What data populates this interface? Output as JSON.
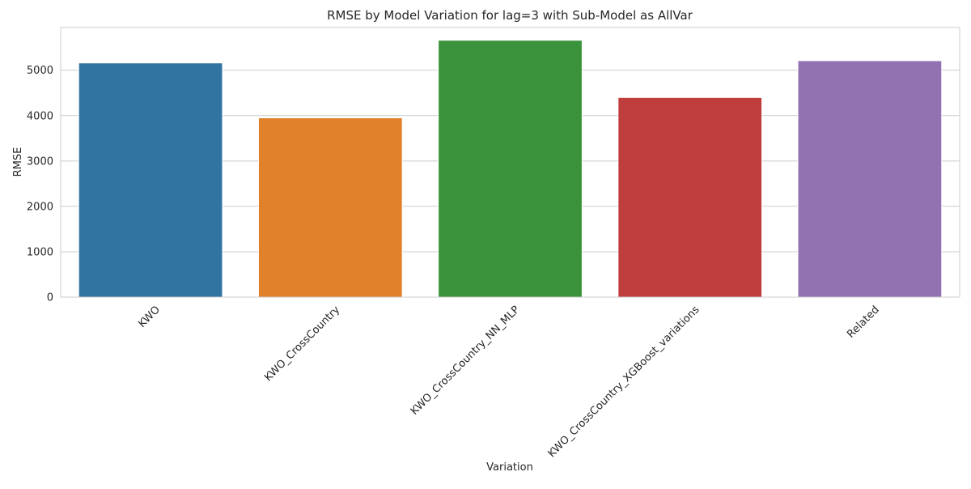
{
  "chart_data": {
    "type": "bar",
    "title": "RMSE by Model Variation for lag=3 with Sub-Model as AllVar",
    "xlabel": "Variation",
    "ylabel": "RMSE",
    "categories": [
      "KWO",
      "KWO_CrossCountry",
      "KWO_CrossCountry_NN_MLP",
      "KWO_CrossCountry_XGBoost_variations",
      "Related"
    ],
    "values": [
      5160,
      3950,
      5660,
      4400,
      5210
    ],
    "colors": [
      "#3274a1",
      "#e1812c",
      "#3a923a",
      "#c03d3e",
      "#9372b2"
    ],
    "ylim": [
      0,
      5940
    ],
    "yticks": [
      0,
      1000,
      2000,
      3000,
      4000,
      5000
    ],
    "ytick_labels": [
      "0",
      "1000",
      "2000",
      "3000",
      "4000",
      "5000"
    ],
    "grid": true,
    "legend": "none"
  }
}
